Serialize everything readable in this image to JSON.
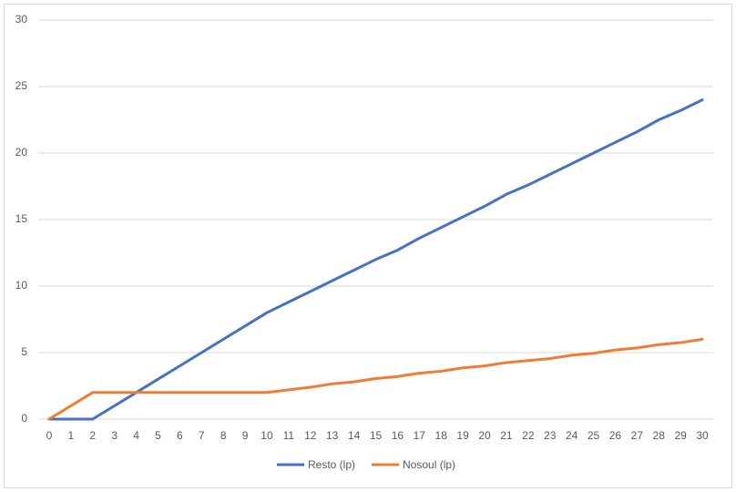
{
  "chart_data": {
    "type": "line",
    "categories": [
      "0",
      "1",
      "2",
      "3",
      "4",
      "5",
      "6",
      "7",
      "8",
      "9",
      "10",
      "11",
      "12",
      "13",
      "14",
      "15",
      "16",
      "17",
      "18",
      "19",
      "20",
      "21",
      "22",
      "23",
      "24",
      "25",
      "26",
      "27",
      "28",
      "29",
      "30"
    ],
    "series": [
      {
        "name": "Resto (lp)",
        "color": "#4472c4",
        "values": [
          0,
          0,
          0,
          1,
          2,
          3,
          4,
          5,
          6,
          7,
          8,
          8.8,
          9.6,
          10.4,
          11.2,
          12,
          12.7,
          13.6,
          14.4,
          15.2,
          16,
          16.9,
          17.6,
          18.4,
          19.2,
          20,
          20.8,
          21.6,
          22.5,
          23.2,
          24
        ]
      },
      {
        "name": "Nosoul (lp)",
        "color": "#ed7d31",
        "values": [
          0,
          1,
          2,
          2,
          2,
          2,
          2,
          2,
          2,
          2,
          2,
          2.2,
          2.4,
          2.65,
          2.8,
          3.05,
          3.2,
          3.45,
          3.6,
          3.85,
          4,
          4.25,
          4.4,
          4.55,
          4.8,
          4.95,
          5.2,
          5.35,
          5.6,
          5.75,
          6
        ]
      }
    ],
    "ylim": [
      0,
      30
    ],
    "yticks": [
      0,
      5,
      10,
      15,
      20,
      25,
      30
    ],
    "grid": true,
    "legend": "bottom"
  }
}
